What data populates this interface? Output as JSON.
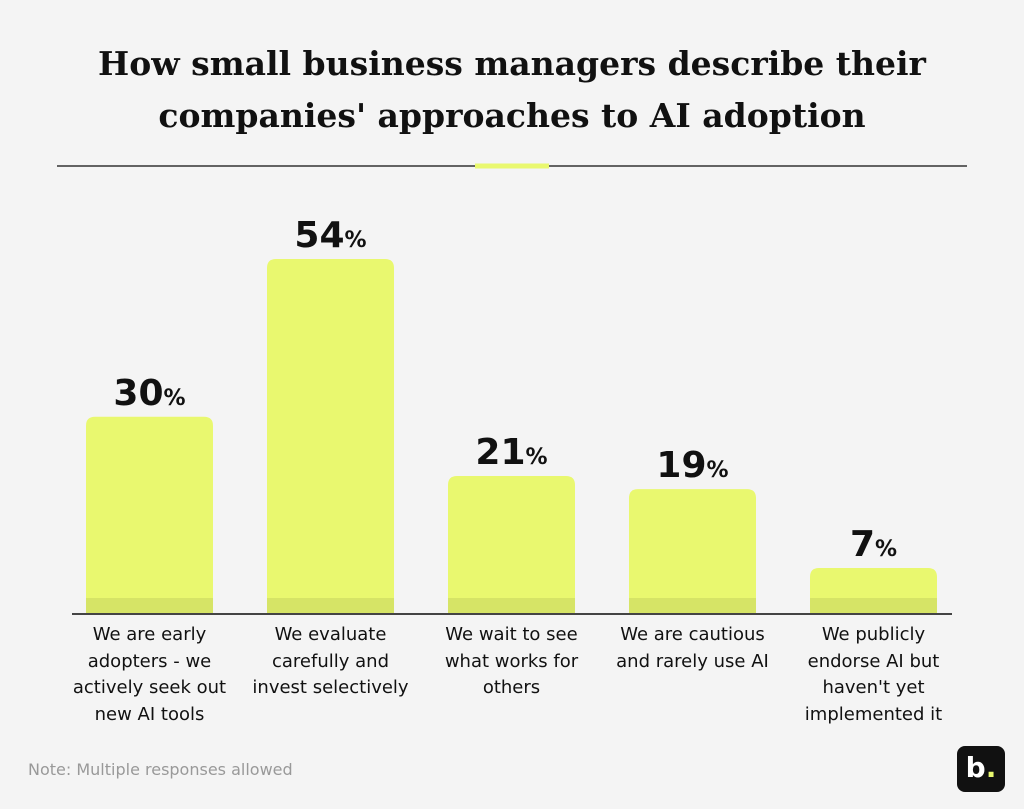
{
  "chart_data": {
    "type": "bar",
    "title": "How small business managers describe their companies' approaches to AI adoption",
    "categories": [
      "We are early adopters - we actively seek out new AI tools",
      "We evaluate carefully and invest selectively",
      "We wait to see what works for others",
      "We are cautious and rarely use AI",
      "We publicly endorse AI but haven't yet implemented it"
    ],
    "values": [
      30,
      54,
      21,
      19,
      7
    ],
    "value_labels": [
      "30%",
      "54%",
      "21%",
      "19%",
      "7%"
    ],
    "color": "#e9f86f",
    "note": "Note: Multiple responses allowed",
    "logo": "b."
  }
}
